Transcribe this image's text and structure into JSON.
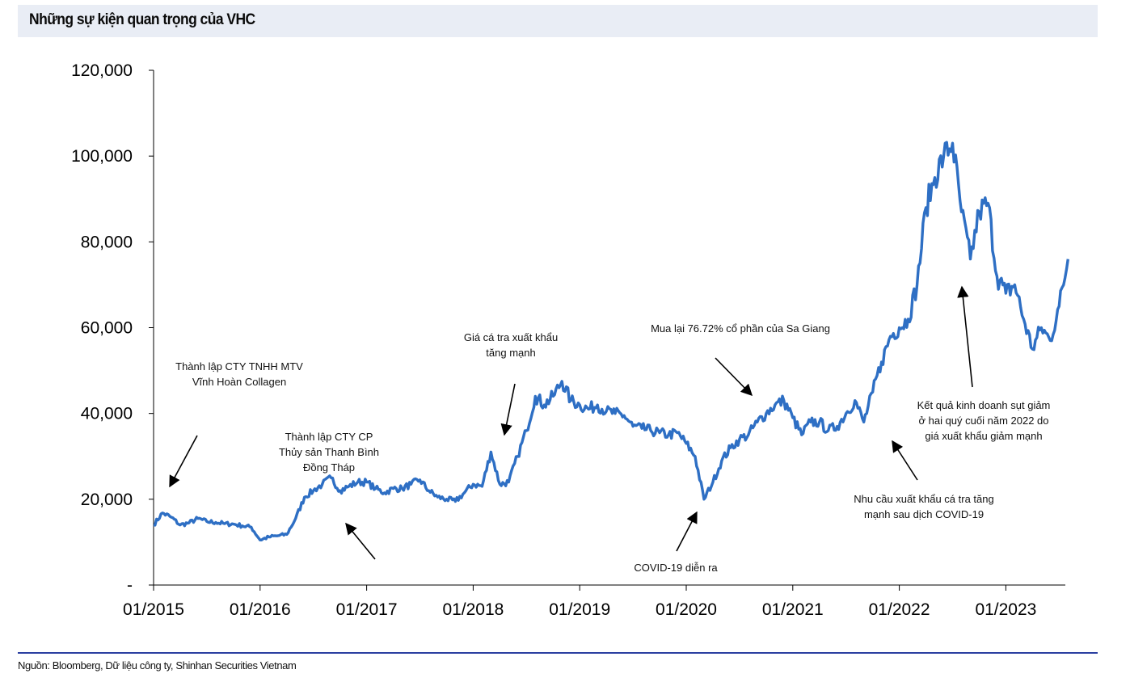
{
  "header": {
    "title": "Những sự kiện quan trọng của VHC"
  },
  "footer": {
    "source": "Nguồn: Bloomberg, Dữ liệu công ty, Shinhan Securities Vietnam"
  },
  "colors": {
    "line": "#2e6fc4",
    "title_bg": "#e9edf5",
    "rule": "#2a3fa0",
    "covid": "#e0302a"
  },
  "chart_data": {
    "type": "line",
    "title": "Những sự kiện quan trọng của VHC",
    "xlabel": "",
    "ylabel": "",
    "ylim": [
      0,
      120000
    ],
    "xlim": [
      "2015-01",
      "2023-08"
    ],
    "grid": false,
    "y_ticks": [
      "-",
      "20,000",
      "40,000",
      "60,000",
      "80,000",
      "100,000",
      "120,000"
    ],
    "x_ticks": [
      "01/2015",
      "01/2016",
      "01/2017",
      "01/2018",
      "01/2019",
      "01/2020",
      "01/2021",
      "01/2022",
      "01/2023"
    ],
    "series": [
      {
        "x": [
          "2015-01",
          "2015-02",
          "2015-03",
          "2015-04",
          "2015-05",
          "2015-06",
          "2015-07",
          "2015-08",
          "2015-09",
          "2015-10",
          "2015-11",
          "2015-12",
          "2016-01",
          "2016-02",
          "2016-03",
          "2016-04",
          "2016-05",
          "2016-06",
          "2016-07",
          "2016-08",
          "2016-09",
          "2016-10",
          "2016-11",
          "2016-12",
          "2017-01",
          "2017-02",
          "2017-03",
          "2017-04",
          "2017-05",
          "2017-06",
          "2017-07",
          "2017-08",
          "2017-09",
          "2017-10",
          "2017-11",
          "2017-12",
          "2018-01",
          "2018-02",
          "2018-03",
          "2018-04",
          "2018-05",
          "2018-06",
          "2018-07",
          "2018-08",
          "2018-09",
          "2018-10",
          "2018-11",
          "2018-12",
          "2019-01",
          "2019-02",
          "2019-03",
          "2019-04",
          "2019-05",
          "2019-06",
          "2019-07",
          "2019-08",
          "2019-09",
          "2019-10",
          "2019-11",
          "2019-12",
          "2020-01",
          "2020-02",
          "2020-03",
          "2020-04",
          "2020-05",
          "2020-06",
          "2020-07",
          "2020-08",
          "2020-09",
          "2020-10",
          "2020-11",
          "2020-12",
          "2021-01",
          "2021-02",
          "2021-03",
          "2021-04",
          "2021-05",
          "2021-06",
          "2021-07",
          "2021-08",
          "2021-09",
          "2021-10",
          "2021-11",
          "2021-12",
          "2022-01",
          "2022-02",
          "2022-03",
          "2022-04",
          "2022-05",
          "2022-06",
          "2022-07",
          "2022-08",
          "2022-09",
          "2022-10",
          "2022-11",
          "2022-12",
          "2023-01",
          "2023-02",
          "2023-03",
          "2023-04",
          "2023-05",
          "2023-06",
          "2023-07",
          "2023-08"
        ],
        "values": [
          14000,
          16800,
          15800,
          14000,
          14500,
          15500,
          14800,
          14600,
          14300,
          14200,
          13800,
          13500,
          10500,
          11200,
          11500,
          11800,
          15500,
          20500,
          22000,
          23500,
          25000,
          22000,
          23000,
          24000,
          24000,
          22500,
          21500,
          22500,
          22500,
          23500,
          24500,
          22000,
          20500,
          20000,
          19500,
          21500,
          23500,
          23000,
          31000,
          23500,
          24000,
          30000,
          36000,
          44000,
          42000,
          44000,
          47500,
          43000,
          42000,
          41000,
          42000,
          40500,
          40000,
          39500,
          37000,
          36500,
          36000,
          35500,
          35000,
          35500,
          33000,
          30000,
          20000,
          24000,
          29000,
          32000,
          34000,
          35000,
          38000,
          40000,
          42000,
          43000,
          39000,
          35000,
          38000,
          38000,
          36000,
          37000,
          40000,
          43000,
          38000,
          45000,
          52000,
          58000,
          60000,
          62000,
          70000,
          88000,
          95000,
          100000,
          103000,
          87000,
          76000,
          87000,
          89000,
          72000,
          68000,
          70000,
          62000,
          55000,
          60000,
          57000,
          65000,
          76000
        ]
      }
    ],
    "annotations": [
      {
        "text": [
          "Thành lập CTY TNHH MTV",
          "Vĩnh Hoàn Collagen"
        ],
        "date": "2015-01"
      },
      {
        "text": [
          "Thành lập CTY CP",
          "Thủy sản Thanh Bình",
          "Đồng Tháp"
        ],
        "date": "2016-09"
      },
      {
        "text": [
          "Giá cá tra xuất khẩu",
          "tăng mạnh"
        ],
        "date": "2018-03"
      },
      {
        "text": [
          "Mua lại 76.72% cổ phần của Sa Giang"
        ],
        "date": "2020-08"
      },
      {
        "text": [
          "COVID-19 diễn ra"
        ],
        "date": "2020-03"
      },
      {
        "text": [
          "Kết quả kinh doanh sụt giảm",
          "ở hai quý cuối năm 2022 do",
          "giá xuất khẩu giảm mạnh"
        ],
        "date": "2022-07"
      },
      {
        "text": [
          "Nhu cầu xuất khẩu cá tra tăng",
          "mạnh sau dịch COVID-19"
        ],
        "date": "2021-12"
      }
    ]
  }
}
